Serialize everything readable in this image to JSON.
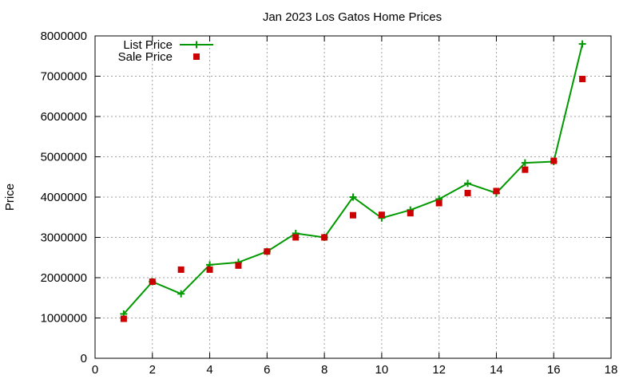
{
  "chart_data": {
    "type": "line",
    "title": "Jan 2023 Los Gatos Home Prices",
    "xlabel": "",
    "ylabel": "Price",
    "xlim": [
      0,
      18
    ],
    "ylim": [
      0,
      8000000
    ],
    "x_ticks": [
      0,
      2,
      4,
      6,
      8,
      10,
      12,
      14,
      16,
      18
    ],
    "y_ticks": [
      0,
      1000000,
      2000000,
      3000000,
      4000000,
      5000000,
      6000000,
      7000000,
      8000000
    ],
    "grid": true,
    "legend_position": "top-left",
    "series": [
      {
        "name": "List Price",
        "style": "line+cross",
        "color": "#009900",
        "x": [
          1,
          2,
          3,
          4,
          5,
          6,
          7,
          8,
          9,
          10,
          11,
          12,
          13,
          14,
          15,
          16,
          17
        ],
        "values": [
          1100000,
          1900000,
          1600000,
          2320000,
          2380000,
          2650000,
          3100000,
          3000000,
          4000000,
          3480000,
          3680000,
          3950000,
          4340000,
          4100000,
          4850000,
          4880000,
          7800000
        ]
      },
      {
        "name": "Sale Price",
        "style": "square",
        "color": "#cc0000",
        "x": [
          1,
          2,
          3,
          4,
          5,
          6,
          7,
          8,
          9,
          10,
          11,
          12,
          13,
          14,
          15,
          16,
          17
        ],
        "values": [
          980000,
          1900000,
          2200000,
          2200000,
          2300000,
          2650000,
          3000000,
          3000000,
          3550000,
          3560000,
          3600000,
          3850000,
          4100000,
          4150000,
          4680000,
          4900000,
          6930000
        ]
      }
    ]
  }
}
